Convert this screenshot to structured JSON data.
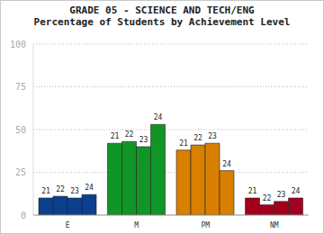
{
  "chart_data": {
    "type": "bar",
    "title": "GRADE 05 - SCIENCE AND TECH/ENG",
    "subtitle": "Percentage of Students by Achievement Level",
    "categories": [
      "E",
      "M",
      "PM",
      "NM"
    ],
    "series": [
      {
        "name": "21",
        "values": [
          10,
          42,
          38,
          10
        ]
      },
      {
        "name": "22",
        "values": [
          11,
          43,
          41,
          6
        ]
      },
      {
        "name": "23",
        "values": [
          10,
          40,
          42,
          8
        ]
      },
      {
        "name": "24",
        "values": [
          12,
          53,
          26,
          10
        ]
      }
    ],
    "colors": [
      "#0d3f8f",
      "#119526",
      "#d98000",
      "#a3001e"
    ],
    "ylim": [
      0,
      100
    ],
    "yticks": [
      0,
      25,
      50,
      75,
      100
    ],
    "grid": true
  }
}
